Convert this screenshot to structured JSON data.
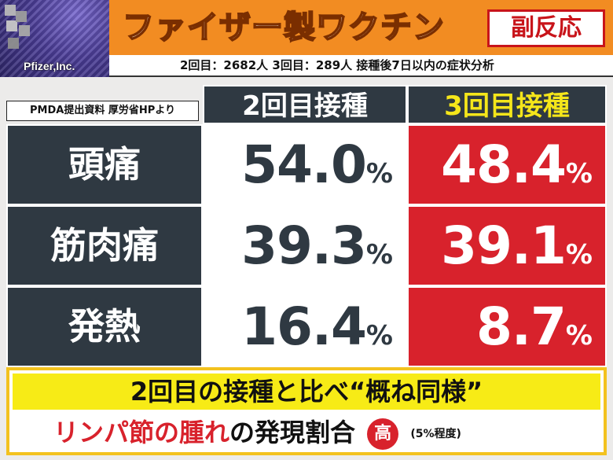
{
  "logo": {
    "text": "Pfizer,Inc."
  },
  "header": {
    "title": "ファイザー製ワクチン",
    "badge": "副反応",
    "subtitle": "2回目：2682人 3回目：289人 接種後7日以内の症状分析"
  },
  "table": {
    "source": "PMDA提出資料 厚労省HPより",
    "columns": [
      "2回目接種",
      "3回目接種"
    ],
    "percent_sign": "%",
    "rows": [
      {
        "label": "頭痛",
        "dose2": "54.0",
        "dose3": "48.4"
      },
      {
        "label": "筋肉痛",
        "dose2": "39.3",
        "dose3": "39.1"
      },
      {
        "label": "発熱",
        "dose2": "16.4",
        "dose3": "8.7"
      }
    ]
  },
  "footer": {
    "line1": "2回目の接種と比べ“概ね同様”",
    "line2_red_a": "リンパ節の",
    "line2_red_b": "腫れ",
    "line2_black": "の発現割合",
    "circle": "高",
    "note": "(5%程度)"
  },
  "colors": {
    "orange": "#f28c22",
    "navy": "#2f3942",
    "red": "#d8222c",
    "yellow": "#f7eb16"
  }
}
